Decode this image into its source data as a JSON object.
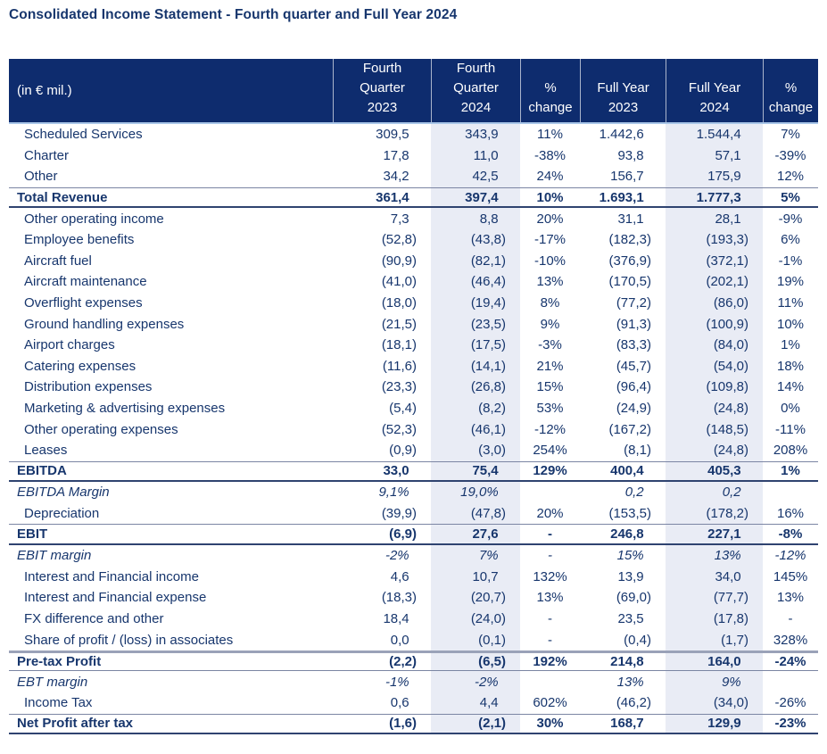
{
  "title": "Consolidated Income Statement - Fourth quarter and Full Year 2024",
  "colors": {
    "header_background": "#0e2c6e",
    "header_text": "#ffffff",
    "body_text": "#17366d",
    "shaded_column": "#e9ecf5",
    "rule_dark": "#2f4370",
    "rule_gray": "#7b85a3",
    "rule_light_blue": "#a9c6e8"
  },
  "table": {
    "unit_label": "(in € mil.)",
    "columns": [
      "Fourth\nQuarter\n2023",
      "Fourth\nQuarter\n2024",
      "%\nchange",
      "Full Year\n2023",
      "Full Year\n2024",
      "%\nchange"
    ],
    "rows": [
      {
        "label": "Scheduled Services",
        "style": "normal",
        "values": [
          "309,5",
          "343,9",
          "11%",
          "1.442,6",
          "1.544,4",
          "7%"
        ]
      },
      {
        "label": "Charter",
        "style": "normal",
        "values": [
          "17,8",
          "11,0",
          "-38%",
          "93,8",
          "57,1",
          "-39%"
        ]
      },
      {
        "label": "Other",
        "style": "normal",
        "values": [
          "34,2",
          "42,5",
          "24%",
          "156,7",
          "175,9",
          "12%"
        ]
      },
      {
        "label": "Total Revenue",
        "style": "total",
        "values": [
          "361,4",
          "397,4",
          "10%",
          "1.693,1",
          "1.777,3",
          "5%"
        ]
      },
      {
        "label": "Other operating income",
        "style": "normal",
        "values": [
          "7,3",
          "8,8",
          "20%",
          "31,1",
          "28,1",
          "-9%"
        ]
      },
      {
        "label": "Employee benefits",
        "style": "normal",
        "values": [
          "(52,8)",
          "(43,8)",
          "-17%",
          "(182,3)",
          "(193,3)",
          "6%"
        ]
      },
      {
        "label": "Aircraft fuel",
        "style": "normal",
        "values": [
          "(90,9)",
          "(82,1)",
          "-10%",
          "(376,9)",
          "(372,1)",
          "-1%"
        ]
      },
      {
        "label": "Aircraft maintenance",
        "style": "normal",
        "values": [
          "(41,0)",
          "(46,4)",
          "13%",
          "(170,5)",
          "(202,1)",
          "19%"
        ]
      },
      {
        "label": "Overflight expenses",
        "style": "normal",
        "values": [
          "(18,0)",
          "(19,4)",
          "8%",
          "(77,2)",
          "(86,0)",
          "11%"
        ]
      },
      {
        "label": "Ground handling expenses",
        "style": "normal",
        "values": [
          "(21,5)",
          "(23,5)",
          "9%",
          "(91,3)",
          "(100,9)",
          "10%"
        ]
      },
      {
        "label": "Airport charges",
        "style": "normal",
        "values": [
          "(18,1)",
          "(17,5)",
          "-3%",
          "(83,3)",
          "(84,0)",
          "1%"
        ]
      },
      {
        "label": "Catering expenses",
        "style": "normal",
        "values": [
          "(11,6)",
          "(14,1)",
          "21%",
          "(45,7)",
          "(54,0)",
          "18%"
        ]
      },
      {
        "label": "Distribution expenses",
        "style": "normal",
        "values": [
          "(23,3)",
          "(26,8)",
          "15%",
          "(96,4)",
          "(109,8)",
          "14%"
        ]
      },
      {
        "label": "Marketing & advertising expenses",
        "style": "normal",
        "values": [
          "(5,4)",
          "(8,2)",
          "53%",
          "(24,9)",
          "(24,8)",
          "0%"
        ]
      },
      {
        "label": "Other operating expenses",
        "style": "normal",
        "values": [
          "(52,3)",
          "(46,1)",
          "-12%",
          "(167,2)",
          "(148,5)",
          "-11%"
        ]
      },
      {
        "label": "Leases",
        "style": "normal",
        "values": [
          "(0,9)",
          "(3,0)",
          "254%",
          "(8,1)",
          "(24,8)",
          "208%"
        ]
      },
      {
        "label": "EBITDA",
        "style": "total",
        "values": [
          "33,0",
          "75,4",
          "129%",
          "400,4",
          "405,3",
          "1%"
        ]
      },
      {
        "label": "EBITDA Margin",
        "style": "margin",
        "values": [
          "9,1%",
          "19,0%",
          "",
          "0,2",
          "0,2",
          ""
        ]
      },
      {
        "label": "Depreciation",
        "style": "normal",
        "values": [
          "(39,9)",
          "(47,8)",
          "20%",
          "(153,5)",
          "(178,2)",
          "16%"
        ]
      },
      {
        "label": "EBIT",
        "style": "total",
        "values": [
          "(6,9)",
          "27,6",
          "-",
          "246,8",
          "227,1",
          "-8%"
        ]
      },
      {
        "label": "EBIT margin",
        "style": "margin",
        "values": [
          "-2%",
          "7%",
          "-",
          "15%",
          "13%",
          "-12%"
        ]
      },
      {
        "label": "Interest and Financial income",
        "style": "normal",
        "values": [
          "4,6",
          "10,7",
          "132%",
          "13,9",
          "34,0",
          "145%"
        ]
      },
      {
        "label": "Interest and Financial expense",
        "style": "normal",
        "values": [
          "(18,3)",
          "(20,7)",
          "13%",
          "(69,0)",
          "(77,7)",
          "13%"
        ]
      },
      {
        "label": "FX difference and other",
        "style": "normal",
        "values": [
          "18,4",
          "(24,0)",
          "-",
          "23,5",
          "(17,8)",
          "-"
        ]
      },
      {
        "label": "Share of profit / (loss) in associates",
        "style": "normal",
        "values": [
          "0,0",
          "(0,1)",
          "-",
          "(0,4)",
          "(1,7)",
          "328%"
        ]
      },
      {
        "label": "Pre-tax Profit",
        "style": "total",
        "variant": "heavy-top",
        "values": [
          "(2,2)",
          "(6,5)",
          "192%",
          "214,8",
          "164,0",
          "-24%"
        ]
      },
      {
        "label": "EBT margin",
        "style": "margin",
        "values": [
          "-1%",
          "-2%",
          "",
          "13%",
          "9%",
          ""
        ]
      },
      {
        "label": "Income Tax",
        "style": "normal",
        "values": [
          "0,6",
          "4,4",
          "602%",
          "(46,2)",
          "(34,0)",
          "-26%"
        ]
      },
      {
        "label": "Net Profit after tax",
        "style": "total",
        "values": [
          "(1,6)",
          "(2,1)",
          "30%",
          "168,7",
          "129,9",
          "-23%"
        ]
      }
    ]
  }
}
